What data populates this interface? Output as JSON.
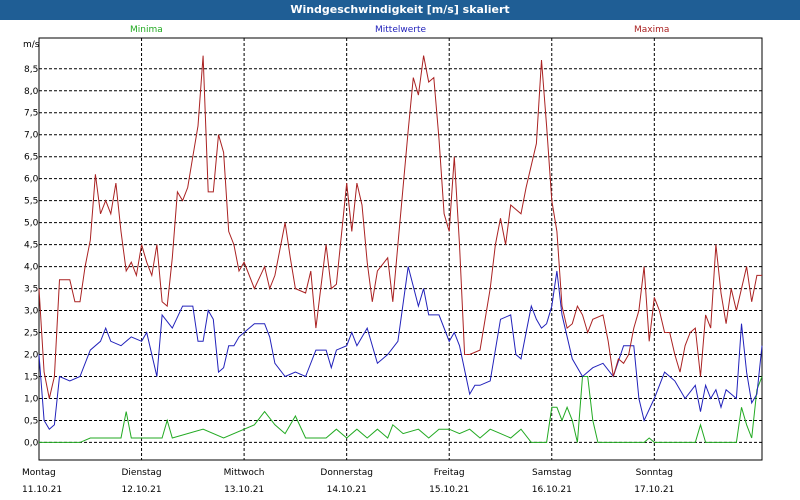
{
  "title": "Windgeschwindigkeit [m/s] skaliert",
  "chart_data": {
    "type": "line",
    "title": "Windgeschwindigkeit [m/s] skaliert",
    "ylabel": "m/s",
    "ylim": [
      -0.4,
      9.2
    ],
    "yticks": [
      "0,0",
      "0,5",
      "1,0",
      "1,5",
      "2,0",
      "2,5",
      "3,0",
      "3,5",
      "4,0",
      "4,5",
      "5,0",
      "5,5",
      "6,0",
      "6,5",
      "7,0",
      "7,5",
      "8,0",
      "8,5"
    ],
    "ytick_values": [
      0,
      0.5,
      1,
      1.5,
      2,
      2.5,
      3,
      3.5,
      4,
      4.5,
      5,
      5.5,
      6,
      6.5,
      7,
      7.5,
      8,
      8.5
    ],
    "xlim": [
      0,
      7.05
    ],
    "days": [
      {
        "day": "Montag",
        "date": "11.10.21"
      },
      {
        "day": "Dienstag",
        "date": "12.10.21"
      },
      {
        "day": "Mittwoch",
        "date": "13.10.21"
      },
      {
        "day": "Donnerstag",
        "date": "14.10.21"
      },
      {
        "day": "Freitag",
        "date": "15.10.21"
      },
      {
        "day": "Samstag",
        "date": "16.10.21"
      },
      {
        "day": "Sonntag",
        "date": "17.10.21"
      }
    ],
    "grid": true,
    "legend": "top",
    "series": [
      {
        "name": "Minima",
        "color": "#22aa22",
        "points": [
          [
            0,
            0
          ],
          [
            0.4,
            0
          ],
          [
            0.5,
            0.1
          ],
          [
            0.8,
            0.1
          ],
          [
            0.85,
            0.7
          ],
          [
            0.9,
            0.1
          ],
          [
            1.2,
            0.1
          ],
          [
            1.25,
            0.5
          ],
          [
            1.3,
            0.1
          ],
          [
            1.6,
            0.3
          ],
          [
            1.8,
            0.1
          ],
          [
            2.1,
            0.4
          ],
          [
            2.2,
            0.7
          ],
          [
            2.3,
            0.4
          ],
          [
            2.4,
            0.2
          ],
          [
            2.5,
            0.6
          ],
          [
            2.6,
            0.1
          ],
          [
            2.8,
            0.1
          ],
          [
            2.9,
            0.3
          ],
          [
            3.0,
            0.1
          ],
          [
            3.1,
            0.3
          ],
          [
            3.2,
            0.1
          ],
          [
            3.3,
            0.3
          ],
          [
            3.4,
            0.1
          ],
          [
            3.45,
            0.4
          ],
          [
            3.55,
            0.2
          ],
          [
            3.7,
            0.3
          ],
          [
            3.8,
            0.1
          ],
          [
            3.9,
            0.3
          ],
          [
            4.0,
            0.3
          ],
          [
            4.1,
            0.2
          ],
          [
            4.2,
            0.3
          ],
          [
            4.3,
            0.1
          ],
          [
            4.4,
            0.3
          ],
          [
            4.5,
            0.2
          ],
          [
            4.6,
            0.1
          ],
          [
            4.7,
            0.3
          ],
          [
            4.8,
            0
          ],
          [
            4.95,
            0
          ],
          [
            5.0,
            0.8
          ],
          [
            5.05,
            0.8
          ],
          [
            5.1,
            0.5
          ],
          [
            5.15,
            0.8
          ],
          [
            5.2,
            0.5
          ],
          [
            5.25,
            0
          ],
          [
            5.3,
            1.5
          ],
          [
            5.35,
            1.5
          ],
          [
            5.4,
            0.5
          ],
          [
            5.45,
            0
          ],
          [
            5.9,
            0
          ],
          [
            5.95,
            0.1
          ],
          [
            6.0,
            0
          ],
          [
            6.4,
            0
          ],
          [
            6.45,
            0.4
          ],
          [
            6.5,
            0
          ],
          [
            6.8,
            0
          ],
          [
            6.85,
            0.8
          ],
          [
            6.9,
            0.4
          ],
          [
            6.95,
            0.1
          ],
          [
            7.0,
            1.2
          ],
          [
            7.05,
            1.5
          ]
        ]
      },
      {
        "name": "Mittelwerte",
        "color": "#2222bb",
        "points": [
          [
            0,
            2.0
          ],
          [
            0.05,
            0.5
          ],
          [
            0.1,
            0.3
          ],
          [
            0.15,
            0.4
          ],
          [
            0.2,
            1.5
          ],
          [
            0.3,
            1.4
          ],
          [
            0.4,
            1.5
          ],
          [
            0.5,
            2.1
          ],
          [
            0.6,
            2.3
          ],
          [
            0.65,
            2.6
          ],
          [
            0.7,
            2.3
          ],
          [
            0.8,
            2.2
          ],
          [
            0.9,
            2.4
          ],
          [
            1.0,
            2.3
          ],
          [
            1.05,
            2.5
          ],
          [
            1.1,
            2.0
          ],
          [
            1.15,
            1.5
          ],
          [
            1.2,
            2.9
          ],
          [
            1.3,
            2.6
          ],
          [
            1.4,
            3.1
          ],
          [
            1.5,
            3.1
          ],
          [
            1.55,
            2.3
          ],
          [
            1.6,
            2.3
          ],
          [
            1.65,
            3.0
          ],
          [
            1.7,
            2.8
          ],
          [
            1.75,
            1.6
          ],
          [
            1.8,
            1.7
          ],
          [
            1.85,
            2.2
          ],
          [
            1.9,
            2.2
          ],
          [
            1.95,
            2.4
          ],
          [
            2.0,
            2.5
          ],
          [
            2.1,
            2.7
          ],
          [
            2.2,
            2.7
          ],
          [
            2.25,
            2.4
          ],
          [
            2.3,
            1.8
          ],
          [
            2.4,
            1.5
          ],
          [
            2.5,
            1.6
          ],
          [
            2.6,
            1.5
          ],
          [
            2.7,
            2.1
          ],
          [
            2.8,
            2.1
          ],
          [
            2.85,
            1.7
          ],
          [
            2.9,
            2.1
          ],
          [
            3.0,
            2.2
          ],
          [
            3.05,
            2.5
          ],
          [
            3.1,
            2.2
          ],
          [
            3.2,
            2.6
          ],
          [
            3.3,
            1.8
          ],
          [
            3.4,
            2.0
          ],
          [
            3.5,
            2.3
          ],
          [
            3.6,
            4.0
          ],
          [
            3.7,
            3.1
          ],
          [
            3.75,
            3.5
          ],
          [
            3.8,
            2.9
          ],
          [
            3.9,
            2.9
          ],
          [
            4.0,
            2.3
          ],
          [
            4.05,
            2.5
          ],
          [
            4.1,
            2.2
          ],
          [
            4.2,
            1.1
          ],
          [
            4.25,
            1.3
          ],
          [
            4.3,
            1.3
          ],
          [
            4.4,
            1.4
          ],
          [
            4.5,
            2.8
          ],
          [
            4.6,
            2.9
          ],
          [
            4.65,
            2.0
          ],
          [
            4.7,
            1.9
          ],
          [
            4.75,
            2.5
          ],
          [
            4.8,
            3.1
          ],
          [
            4.85,
            2.8
          ],
          [
            4.9,
            2.6
          ],
          [
            4.95,
            2.7
          ],
          [
            5.0,
            3.1
          ],
          [
            5.05,
            3.9
          ],
          [
            5.1,
            2.9
          ],
          [
            5.2,
            1.9
          ],
          [
            5.3,
            1.5
          ],
          [
            5.4,
            1.7
          ],
          [
            5.5,
            1.8
          ],
          [
            5.6,
            1.5
          ],
          [
            5.7,
            2.2
          ],
          [
            5.8,
            2.2
          ],
          [
            5.85,
            1.0
          ],
          [
            5.9,
            0.5
          ],
          [
            6.0,
            1.0
          ],
          [
            6.1,
            1.6
          ],
          [
            6.2,
            1.4
          ],
          [
            6.3,
            1.0
          ],
          [
            6.4,
            1.3
          ],
          [
            6.45,
            0.7
          ],
          [
            6.5,
            1.3
          ],
          [
            6.55,
            1.0
          ],
          [
            6.6,
            1.2
          ],
          [
            6.65,
            0.8
          ],
          [
            6.7,
            1.2
          ],
          [
            6.8,
            1.0
          ],
          [
            6.85,
            2.7
          ],
          [
            6.9,
            1.6
          ],
          [
            6.95,
            0.9
          ],
          [
            7.0,
            1.1
          ],
          [
            7.05,
            2.2
          ]
        ]
      },
      {
        "name": "Maxima",
        "color": "#aa2222",
        "points": [
          [
            0,
            3.5
          ],
          [
            0.05,
            1.6
          ],
          [
            0.1,
            1.0
          ],
          [
            0.15,
            1.5
          ],
          [
            0.2,
            3.7
          ],
          [
            0.3,
            3.7
          ],
          [
            0.35,
            3.2
          ],
          [
            0.4,
            3.2
          ],
          [
            0.45,
            4.0
          ],
          [
            0.5,
            4.6
          ],
          [
            0.55,
            6.1
          ],
          [
            0.6,
            5.2
          ],
          [
            0.65,
            5.5
          ],
          [
            0.7,
            5.2
          ],
          [
            0.75,
            5.9
          ],
          [
            0.8,
            4.8
          ],
          [
            0.85,
            3.9
          ],
          [
            0.9,
            4.1
          ],
          [
            0.95,
            3.8
          ],
          [
            1.0,
            4.5
          ],
          [
            1.05,
            4.1
          ],
          [
            1.1,
            3.8
          ],
          [
            1.15,
            4.5
          ],
          [
            1.2,
            3.2
          ],
          [
            1.25,
            3.1
          ],
          [
            1.3,
            4.2
          ],
          [
            1.35,
            5.7
          ],
          [
            1.4,
            5.5
          ],
          [
            1.45,
            5.8
          ],
          [
            1.5,
            6.5
          ],
          [
            1.55,
            7.2
          ],
          [
            1.6,
            8.8
          ],
          [
            1.65,
            5.7
          ],
          [
            1.7,
            5.7
          ],
          [
            1.75,
            7.0
          ],
          [
            1.8,
            6.6
          ],
          [
            1.85,
            4.8
          ],
          [
            1.9,
            4.5
          ],
          [
            1.95,
            3.9
          ],
          [
            2.0,
            4.1
          ],
          [
            2.1,
            3.5
          ],
          [
            2.2,
            4.0
          ],
          [
            2.25,
            3.5
          ],
          [
            2.3,
            3.8
          ],
          [
            2.4,
            5.0
          ],
          [
            2.45,
            4.2
          ],
          [
            2.5,
            3.5
          ],
          [
            2.6,
            3.4
          ],
          [
            2.65,
            3.9
          ],
          [
            2.7,
            2.6
          ],
          [
            2.8,
            4.5
          ],
          [
            2.85,
            3.5
          ],
          [
            2.9,
            3.6
          ],
          [
            3.0,
            5.9
          ],
          [
            3.05,
            4.8
          ],
          [
            3.1,
            5.9
          ],
          [
            3.15,
            5.4
          ],
          [
            3.2,
            4.1
          ],
          [
            3.25,
            3.2
          ],
          [
            3.3,
            3.9
          ],
          [
            3.4,
            4.2
          ],
          [
            3.45,
            3.2
          ],
          [
            3.5,
            4.5
          ],
          [
            3.6,
            7.1
          ],
          [
            3.65,
            8.3
          ],
          [
            3.7,
            7.9
          ],
          [
            3.75,
            8.8
          ],
          [
            3.8,
            8.2
          ],
          [
            3.85,
            8.3
          ],
          [
            3.9,
            6.9
          ],
          [
            3.95,
            5.2
          ],
          [
            4.0,
            4.8
          ],
          [
            4.05,
            6.5
          ],
          [
            4.1,
            4.5
          ],
          [
            4.15,
            2.0
          ],
          [
            4.2,
            2.0
          ],
          [
            4.3,
            2.1
          ],
          [
            4.4,
            3.5
          ],
          [
            4.45,
            4.5
          ],
          [
            4.5,
            5.1
          ],
          [
            4.55,
            4.5
          ],
          [
            4.6,
            5.4
          ],
          [
            4.7,
            5.2
          ],
          [
            4.75,
            5.8
          ],
          [
            4.85,
            6.8
          ],
          [
            4.9,
            8.7
          ],
          [
            4.95,
            7.2
          ],
          [
            5.0,
            5.5
          ],
          [
            5.05,
            4.8
          ],
          [
            5.1,
            3.1
          ],
          [
            5.15,
            2.6
          ],
          [
            5.2,
            2.7
          ],
          [
            5.25,
            3.1
          ],
          [
            5.3,
            2.9
          ],
          [
            5.35,
            2.5
          ],
          [
            5.4,
            2.8
          ],
          [
            5.5,
            2.9
          ],
          [
            5.55,
            2.3
          ],
          [
            5.6,
            1.5
          ],
          [
            5.65,
            1.9
          ],
          [
            5.7,
            1.8
          ],
          [
            5.75,
            2.0
          ],
          [
            5.8,
            2.6
          ],
          [
            5.85,
            3.0
          ],
          [
            5.9,
            4.0
          ],
          [
            5.95,
            2.3
          ],
          [
            6.0,
            3.3
          ],
          [
            6.05,
            3.0
          ],
          [
            6.1,
            2.5
          ],
          [
            6.15,
            2.5
          ],
          [
            6.2,
            2.0
          ],
          [
            6.25,
            1.6
          ],
          [
            6.3,
            2.2
          ],
          [
            6.35,
            2.5
          ],
          [
            6.4,
            2.6
          ],
          [
            6.45,
            1.5
          ],
          [
            6.5,
            2.9
          ],
          [
            6.55,
            2.6
          ],
          [
            6.6,
            4.5
          ],
          [
            6.65,
            3.4
          ],
          [
            6.7,
            2.7
          ],
          [
            6.75,
            3.5
          ],
          [
            6.8,
            3.0
          ],
          [
            6.85,
            3.5
          ],
          [
            6.9,
            4.0
          ],
          [
            6.95,
            3.2
          ],
          [
            7.0,
            3.8
          ],
          [
            7.05,
            3.8
          ]
        ]
      }
    ]
  }
}
